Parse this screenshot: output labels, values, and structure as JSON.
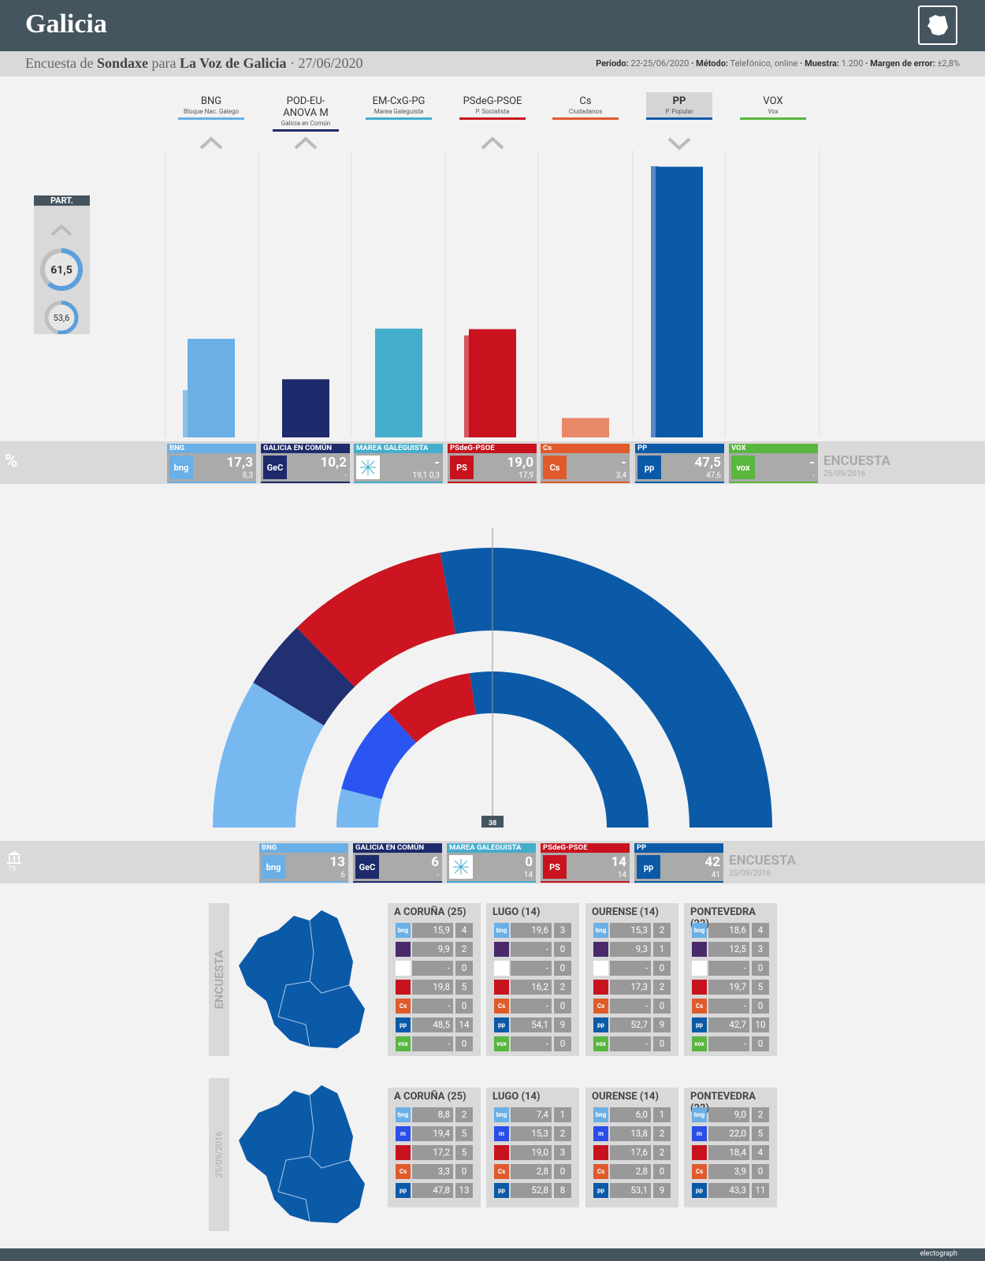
{
  "header": {
    "title": "Galicia"
  },
  "subheader": {
    "left_pre": "Encuesta de",
    "pollster": "Sondaxe",
    "para": "para",
    "media": "La Voz de Galicia",
    "date": "· 27/06/2020",
    "periodo_label": "Periodo:",
    "periodo": "22-25/06/2020",
    "metodo_label": "· Método:",
    "metodo": "Telefónico, online",
    "muestra_label": "· Muestra:",
    "muestra": "1.200",
    "margen_label": "· Margen de error:",
    "margen": "±2,8%"
  },
  "participation": {
    "label": "PART.",
    "current": "61,5",
    "previous": "53,6"
  },
  "parties": [
    {
      "name": "BNG",
      "full": "Bloque Nac. Galego",
      "color": "#6aafe6",
      "dir": "up"
    },
    {
      "name": "POD-EU-ANOVA M",
      "full": "Galicia en Común",
      "color": "#1d2a6b",
      "dir": "up"
    },
    {
      "name": "EM-CxG-PG",
      "full": "Marea Galeguista",
      "color": "#45adcc",
      "dir": ""
    },
    {
      "name": "PSdeG-PSOE",
      "full": "P. Socialista",
      "color": "#c8131f",
      "dir": "up"
    },
    {
      "name": "Cs",
      "full": "Ciudadanos",
      "color": "#e05a2c",
      "dir": ""
    },
    {
      "name": "PP",
      "full": "P. Popular",
      "color": "#0b5aa8",
      "dir": "down"
    },
    {
      "name": "VOX",
      "full": "Vox",
      "color": "#59b63f",
      "dir": ""
    }
  ],
  "pct_cards": [
    {
      "label": "BNG",
      "logo": "bng",
      "value": "17,3",
      "prev": "8,3",
      "color": "#6aafe6"
    },
    {
      "label": "GALICIA EN COMÚN",
      "logo": "GeC",
      "value": "10,2",
      "prev": "-",
      "color": "#1d2a6b"
    },
    {
      "label": "MAREA GALEGUISTA",
      "logo": "MG",
      "value": "-",
      "prev_a": "19,1",
      "prev_b": "0,3",
      "color": "#45adcc"
    },
    {
      "label": "PSdeG-PSOE",
      "logo": "PS",
      "value": "19,0",
      "prev": "17,9",
      "color": "#c8131f"
    },
    {
      "label": "Cs",
      "logo": "Cs",
      "value": "-",
      "prev": "3,4",
      "color": "#e05a2c"
    },
    {
      "label": "PP",
      "logo": "pp",
      "value": "47,5",
      "prev": "47,6",
      "color": "#0b5aa8"
    },
    {
      "label": "VOX",
      "logo": "vox",
      "value": "-",
      "prev": "-",
      "color": "#59b63f"
    }
  ],
  "seat_cards": [
    {
      "label": "BNG",
      "logo": "bng",
      "value": "13",
      "prev": "6",
      "color": "#6aafe6"
    },
    {
      "label": "GALICIA EN COMÚN",
      "logo": "GeC",
      "value": "6",
      "prev": "-",
      "color": "#1d2a6b"
    },
    {
      "label": "MAREA GALEGUISTA",
      "logo": "MG",
      "value": "0",
      "prev": "14",
      "color": "#45adcc"
    },
    {
      "label": "PSdeG-PSOE",
      "logo": "PS",
      "value": "14",
      "prev": "14",
      "color": "#c8131f"
    },
    {
      "label": "PP",
      "logo": "pp",
      "value": "42",
      "prev": "41",
      "color": "#0b5aa8"
    }
  ],
  "encuesta_label": "ENCUESTA",
  "prev_date": "25/09/2016",
  "seats_total": "75",
  "majority": "38",
  "side_encuesta": "ENCUESTA",
  "side_prev": "25/09/2016",
  "chart_data": [
    {
      "type": "bar",
      "categories": [
        "BNG",
        "POD-EU-ANOVA M",
        "EM-CxG-PG",
        "PSdeG-PSOE",
        "Cs",
        "PP",
        "VOX"
      ],
      "series": [
        {
          "name": "ENCUESTA",
          "values": [
            17.3,
            10.2,
            null,
            19.0,
            null,
            47.5,
            null
          ]
        },
        {
          "name": "25/09/2016",
          "values": [
            8.3,
            null,
            19.1,
            17.9,
            3.4,
            47.6,
            null
          ]
        }
      ],
      "ylim": [
        0,
        50
      ]
    },
    {
      "type": "pie",
      "categories": [
        "BNG",
        "GALICIA EN COMÚN",
        "PSdeG-PSOE",
        "PP"
      ],
      "series": [
        {
          "name": "ENCUESTA",
          "values": [
            13,
            6,
            14,
            42
          ]
        },
        {
          "name": "25/09/2016",
          "values": [
            6,
            14,
            14,
            41
          ]
        }
      ]
    },
    {
      "type": "table",
      "series_name": "ENCUESTA",
      "provinces": [
        {
          "name": "A CORUÑA (25)",
          "rows": [
            [
              "bng",
              "15,9",
              "4"
            ],
            [
              "gec",
              "9,9",
              "2"
            ],
            [
              "mg",
              "-",
              "0"
            ],
            [
              "ps",
              "19,8",
              "5"
            ],
            [
              "cs",
              "-",
              "0"
            ],
            [
              "pp",
              "48,5",
              "14"
            ],
            [
              "vox",
              "-",
              "0"
            ]
          ]
        },
        {
          "name": "LUGO (14)",
          "rows": [
            [
              "bng",
              "19,6",
              "3"
            ],
            [
              "gec",
              "-",
              "0"
            ],
            [
              "mg",
              "-",
              "0"
            ],
            [
              "ps",
              "16,2",
              "2"
            ],
            [
              "cs",
              "-",
              "0"
            ],
            [
              "pp",
              "54,1",
              "9"
            ],
            [
              "vox",
              "-",
              "0"
            ]
          ]
        },
        {
          "name": "OURENSE (14)",
          "rows": [
            [
              "bng",
              "15,3",
              "2"
            ],
            [
              "gec",
              "9,3",
              "1"
            ],
            [
              "mg",
              "-",
              "0"
            ],
            [
              "ps",
              "17,3",
              "2"
            ],
            [
              "cs",
              "-",
              "0"
            ],
            [
              "pp",
              "52,7",
              "9"
            ],
            [
              "vox",
              "-",
              "0"
            ]
          ]
        },
        {
          "name": "PONTEVEDRA (22)",
          "rows": [
            [
              "bng",
              "18,6",
              "4"
            ],
            [
              "gec",
              "12,5",
              "3"
            ],
            [
              "mg",
              "-",
              "0"
            ],
            [
              "ps",
              "19,7",
              "5"
            ],
            [
              "cs",
              "-",
              "0"
            ],
            [
              "pp",
              "42,7",
              "10"
            ],
            [
              "vox",
              "-",
              "0"
            ]
          ]
        }
      ]
    },
    {
      "type": "table",
      "series_name": "25/09/2016",
      "provinces": [
        {
          "name": "A CORUÑA (25)",
          "rows": [
            [
              "bng",
              "8,8",
              "2"
            ],
            [
              "m",
              "19,4",
              "5"
            ],
            [
              "ps",
              "17,2",
              "5"
            ],
            [
              "cs",
              "3,3",
              "0"
            ],
            [
              "pp",
              "47,8",
              "13"
            ]
          ]
        },
        {
          "name": "LUGO (14)",
          "rows": [
            [
              "bng",
              "7,4",
              "1"
            ],
            [
              "m",
              "15,3",
              "2"
            ],
            [
              "ps",
              "19,0",
              "3"
            ],
            [
              "cs",
              "2,8",
              "0"
            ],
            [
              "pp",
              "52,8",
              "8"
            ]
          ]
        },
        {
          "name": "OURENSE (14)",
          "rows": [
            [
              "bng",
              "6,0",
              "1"
            ],
            [
              "m",
              "13,8",
              "2"
            ],
            [
              "ps",
              "17,6",
              "2"
            ],
            [
              "cs",
              "2,8",
              "0"
            ],
            [
              "pp",
              "53,1",
              "9"
            ]
          ]
        },
        {
          "name": "PONTEVEDRA (22)",
          "rows": [
            [
              "bng",
              "9,0",
              "2"
            ],
            [
              "m",
              "22,0",
              "5"
            ],
            [
              "ps",
              "18,4",
              "4"
            ],
            [
              "cs",
              "3,9",
              "0"
            ],
            [
              "pp",
              "43,3",
              "11"
            ]
          ]
        }
      ]
    }
  ],
  "footer": {
    "brand": "electograph"
  }
}
